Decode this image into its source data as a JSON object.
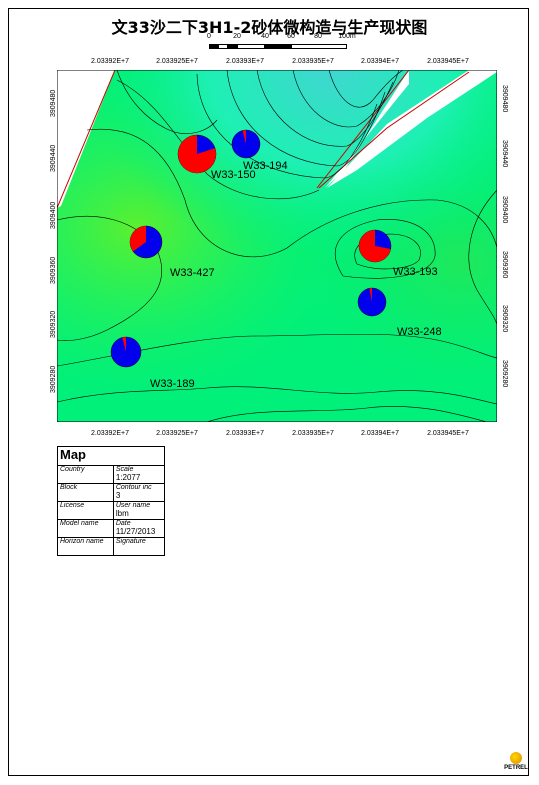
{
  "title": "文33沙二下3H1-2砂体微构造与生产现状图",
  "scale_bar": {
    "labels": [
      "0",
      "20",
      "40",
      "60",
      "80",
      "100m"
    ]
  },
  "axes": {
    "top_labels": [
      "2.03392E+7",
      "2.033925E+7",
      "2.03393E+7",
      "2.033935E+7",
      "2.03394E+7",
      "2.033945E+7"
    ],
    "bottom_labels": [
      "2.03392E+7",
      "2.033925E+7",
      "2.03393E+7",
      "2.033935E+7",
      "2.03394E+7",
      "2.033945E+7"
    ],
    "left_labels": [
      "3909480",
      "3909440",
      "3909400",
      "3909360",
      "3909320",
      "3909280"
    ],
    "right_labels": [
      "3909480",
      "3909440",
      "3909400",
      "3909360",
      "3909320",
      "3909280"
    ]
  },
  "colors": {
    "light_green": "#00f07a",
    "bright_green": "#25f63a",
    "aqua": "#20f0c4",
    "fault": "#cc0000",
    "oil": "#ff0000",
    "water": "#0000ee"
  },
  "wells": [
    {
      "name": "W33-194",
      "oil_fraction": 0.04
    },
    {
      "name": "W33-150",
      "oil_fraction": 0.8
    },
    {
      "name": "W33-427",
      "oil_fraction": 0.35
    },
    {
      "name": "W33-193",
      "oil_fraction": 0.72
    },
    {
      "name": "W33-248",
      "oil_fraction": 0.03
    },
    {
      "name": "W33-189",
      "oil_fraction": 0.04
    }
  ],
  "info_table": {
    "header": "Map",
    "rows": [
      {
        "left_label": "Country",
        "left_value": "",
        "right_label": "Scale",
        "right_value": "1:2077"
      },
      {
        "left_label": "Block",
        "left_value": "",
        "right_label": "Contour inc",
        "right_value": "3"
      },
      {
        "left_label": "License",
        "left_value": "",
        "right_label": "User name",
        "right_value": "lbm"
      },
      {
        "left_label": "Model name",
        "left_value": "",
        "right_label": "Date",
        "right_value": "11/27/2013"
      },
      {
        "left_label": "Horizon name",
        "left_value": "",
        "right_label": "Signature",
        "right_value": ""
      }
    ]
  },
  "logo_text": "PETREL"
}
